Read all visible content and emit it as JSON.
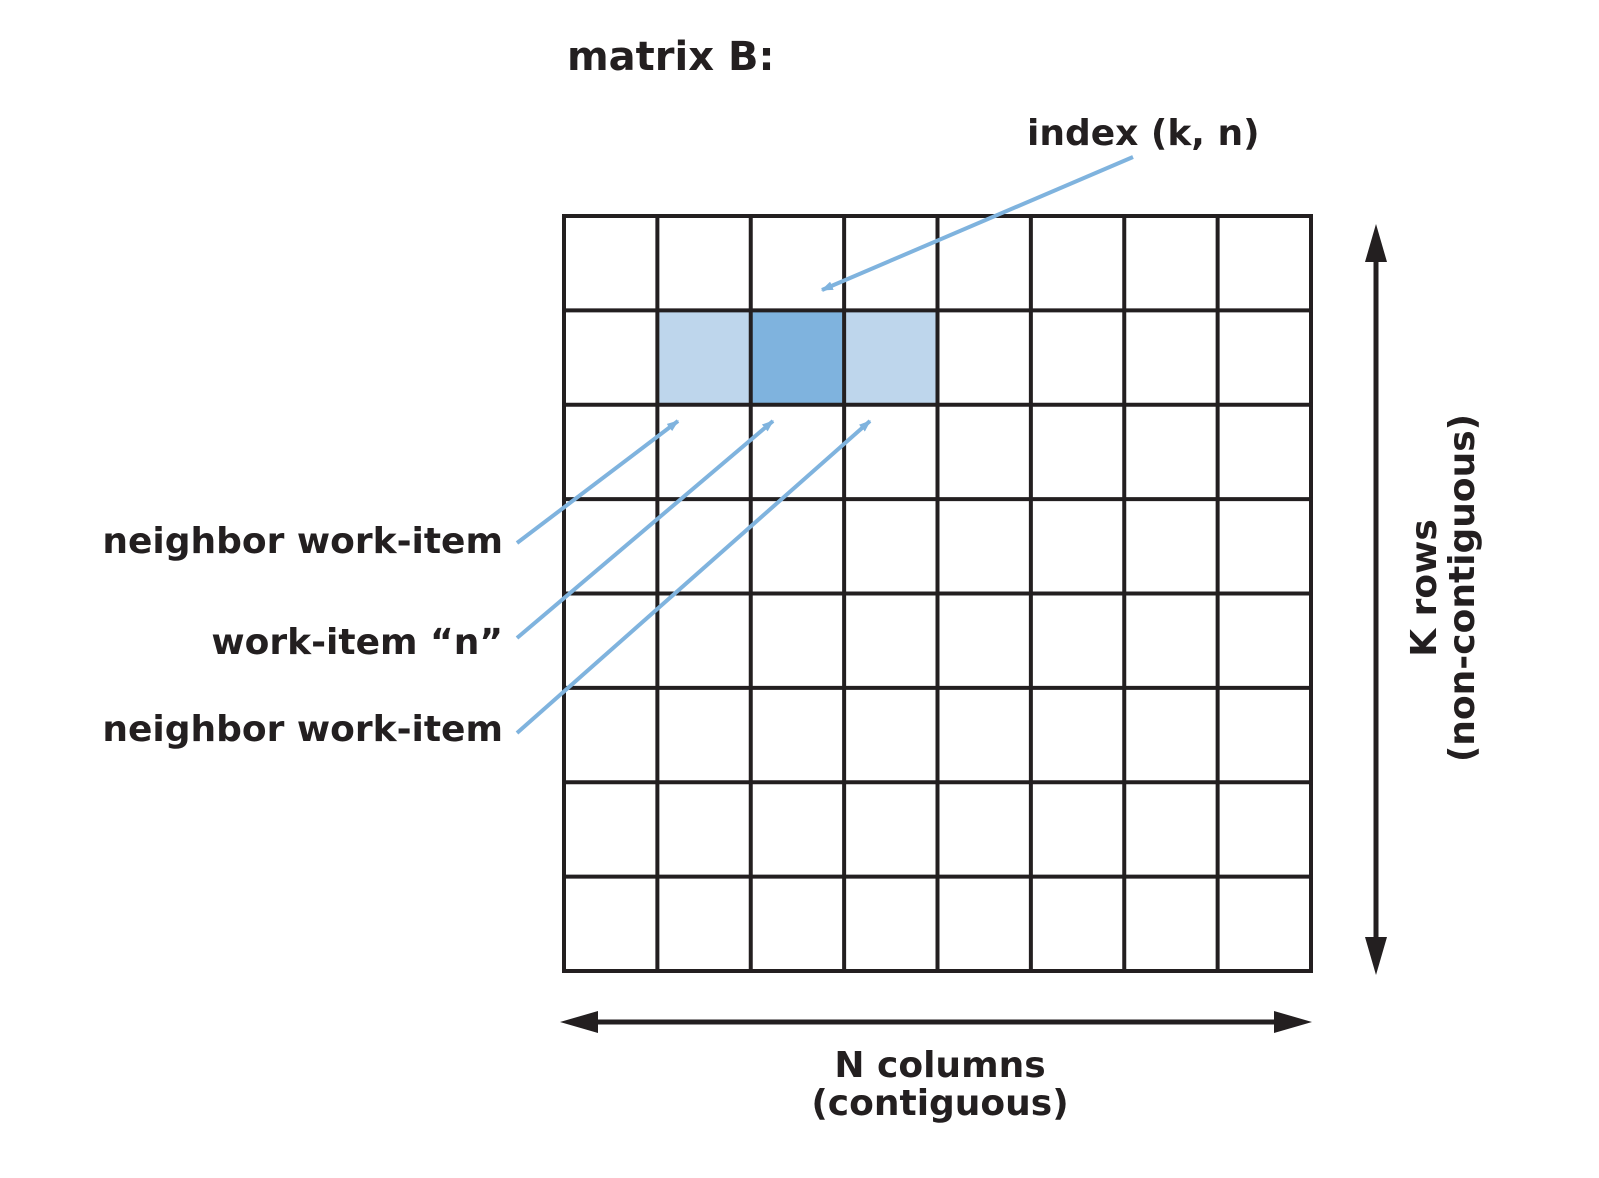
{
  "title": "matrix B:",
  "labels": {
    "index": "index (k, n)",
    "neighbor_top": "neighbor work-item",
    "work_item": "work-item “n”",
    "neighbor_bottom": "neighbor work-item",
    "n_axis_line1": "N columns",
    "n_axis_line2": "(contiguous)",
    "k_axis_line1": "K rows",
    "k_axis_line2": "(non-contiguous)"
  },
  "grid": {
    "rows": 8,
    "columns": 8,
    "highlighted_row": 1,
    "selected_column": 2,
    "neighbor_columns": [
      1,
      3
    ]
  },
  "colors": {
    "line": "#231f20",
    "selected_cell": "#7fb3de",
    "neighbor_cell": "#bed6ec",
    "arrow": "#7fb3de"
  }
}
